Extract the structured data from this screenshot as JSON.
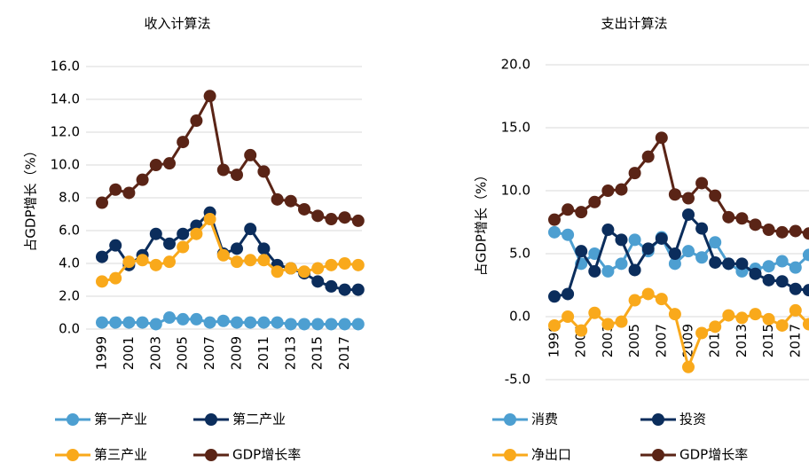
{
  "chart_data": [
    {
      "type": "line",
      "title": "收入计算法",
      "y_label": "占GDP增长（%）",
      "categories": [
        "1999",
        null,
        "2001",
        null,
        "2003",
        null,
        "2005",
        null,
        "2007",
        null,
        "2009",
        null,
        "2011",
        null,
        "2013",
        null,
        "2015",
        null,
        "2017",
        null
      ],
      "ylim": [
        0,
        16
      ],
      "yticks": [
        {
          "value": 0,
          "label": "0.0"
        },
        {
          "value": 2,
          "label": "2.0"
        },
        {
          "value": 4,
          "label": "4.0"
        },
        {
          "value": 6,
          "label": "6.0"
        },
        {
          "value": 8,
          "label": "8.0"
        },
        {
          "value": 10,
          "label": "10.0"
        },
        {
          "value": 12,
          "label": "12.0"
        },
        {
          "value": 14,
          "label": "14.0"
        },
        {
          "value": 16,
          "label": "16.0"
        }
      ],
      "grid": true,
      "series": [
        {
          "name": "第一产业",
          "color": "#4d9fd1",
          "values": [
            0.4,
            0.4,
            0.4,
            0.4,
            0.3,
            0.7,
            0.6,
            0.6,
            0.4,
            0.5,
            0.4,
            0.4,
            0.4,
            0.4,
            0.3,
            0.3,
            0.3,
            0.3,
            0.3,
            0.3
          ]
        },
        {
          "name": "第二产业",
          "color": "#0b2d5c",
          "values": [
            4.4,
            5.1,
            3.9,
            4.5,
            5.8,
            5.2,
            5.8,
            6.3,
            7.1,
            4.6,
            4.9,
            6.1,
            4.9,
            3.9,
            3.7,
            3.4,
            2.9,
            2.6,
            2.4,
            2.4
          ]
        },
        {
          "name": "第三产业",
          "color": "#f9a91b",
          "values": [
            2.9,
            3.1,
            4.1,
            4.2,
            3.9,
            4.1,
            5.0,
            5.8,
            6.7,
            4.5,
            4.1,
            4.2,
            4.2,
            3.5,
            3.7,
            3.5,
            3.7,
            3.9,
            4.0,
            3.9
          ]
        },
        {
          "name": "GDP增长率",
          "color": "#5a2416",
          "values": [
            7.7,
            8.5,
            8.3,
            9.1,
            10.0,
            10.1,
            11.4,
            12.7,
            14.2,
            9.7,
            9.4,
            10.6,
            9.6,
            7.9,
            7.8,
            7.3,
            6.9,
            6.7,
            6.8,
            6.6
          ]
        }
      ]
    },
    {
      "type": "line",
      "title": "支出计算法",
      "y_label": "占GDP增长（%）",
      "categories": [
        "1999",
        null,
        "2001",
        null,
        "2003",
        null,
        "2005",
        null,
        "2007",
        null,
        "2009",
        null,
        "2011",
        null,
        "2013",
        null,
        "2015",
        null,
        "2017",
        null
      ],
      "ylim": [
        -5,
        20
      ],
      "yticks": [
        {
          "value": -5,
          "label": "-5.0"
        },
        {
          "value": 0,
          "label": "0.0"
        },
        {
          "value": 5,
          "label": "5.0"
        },
        {
          "value": 10,
          "label": "10.0"
        },
        {
          "value": 15,
          "label": "15.0"
        },
        {
          "value": 20,
          "label": "20.0"
        }
      ],
      "grid": true,
      "series": [
        {
          "name": "消费",
          "color": "#4d9fd1",
          "values": [
            6.7,
            6.5,
            4.2,
            5.0,
            3.6,
            4.2,
            6.1,
            5.2,
            6.3,
            4.2,
            5.2,
            4.7,
            5.9,
            4.2,
            3.6,
            3.8,
            4.0,
            4.4,
            3.9,
            4.9
          ]
        },
        {
          "name": "投资",
          "color": "#0b2d5c",
          "values": [
            1.6,
            1.8,
            5.2,
            3.6,
            6.9,
            6.1,
            3.7,
            5.4,
            6.2,
            5.0,
            8.1,
            7.0,
            4.3,
            4.2,
            4.2,
            3.4,
            2.9,
            2.8,
            2.2,
            2.1
          ]
        },
        {
          "name": "净出口",
          "color": "#f9a91b",
          "values": [
            -0.7,
            0.0,
            -1.1,
            0.3,
            -0.6,
            -0.4,
            1.3,
            1.8,
            1.4,
            0.2,
            -4.0,
            -1.3,
            -0.8,
            0.1,
            -0.1,
            0.2,
            -0.2,
            -0.7,
            0.5,
            -0.6
          ]
        },
        {
          "name": "GDP增长率",
          "color": "#5a2416",
          "values": [
            7.7,
            8.5,
            8.3,
            9.1,
            10.0,
            10.1,
            11.4,
            12.7,
            14.2,
            9.7,
            9.4,
            10.6,
            9.6,
            7.9,
            7.8,
            7.3,
            6.9,
            6.7,
            6.8,
            6.6
          ]
        }
      ]
    }
  ]
}
